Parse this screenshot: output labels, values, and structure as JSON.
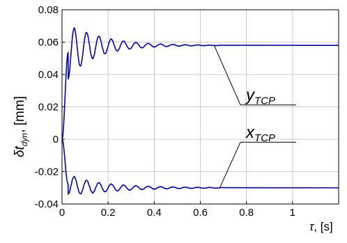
{
  "chart_data": {
    "type": "line",
    "title": "",
    "xlabel_symbol": "τ",
    "xlabel_unit": ", [s]",
    "ylabel_main": "δt",
    "ylabel_sub": "dyn",
    "ylabel_unit": ", [mm]",
    "xlim": [
      0,
      1.2
    ],
    "ylim": [
      -0.04,
      0.08
    ],
    "xticks": [
      0,
      0.2,
      0.4,
      0.6,
      0.8,
      1
    ],
    "xtick_labels": [
      "0",
      "0.2",
      "0.4",
      "0.6",
      "0.8",
      "1"
    ],
    "yticks": [
      -0.04,
      -0.02,
      0,
      0.02,
      0.04,
      0.06,
      0.08
    ],
    "ytick_labels": [
      "-0.04",
      "-0.02",
      "0",
      "0.02",
      "0.04",
      "0.06",
      "0.08"
    ],
    "grid": true,
    "line_color": "#0000cc",
    "series": [
      {
        "name": "y_TCP",
        "label_main": "y",
        "label_sub": "TCP",
        "steady_value": 0.058,
        "dynamics": {
          "onset": 0.0265,
          "amplitude": 0.0165,
          "decay": 7.5,
          "frequency": 18.7,
          "phase": 3.14159
        },
        "ripple": {
          "amplitude": 0.00018,
          "frequency": 120
        },
        "x_end": 1.2,
        "annotation_target": {
          "x": 0.66,
          "y": 0.058
        },
        "annotation_label_pos": {
          "x": 0.78,
          "y": 0.0255
        }
      },
      {
        "name": "x_TCP",
        "label_main": "x",
        "label_sub": "TCP",
        "steady_value": -0.03,
        "dynamics": {
          "onset": 0.0265,
          "amplitude": 0.0062,
          "decay": 5.5,
          "frequency": 18.7,
          "phase": 3.14159
        },
        "ripple": {
          "amplitude": 0.0002,
          "frequency": 120
        },
        "x_end": 1.2,
        "annotation_target": {
          "x": 0.685,
          "y": -0.0298
        },
        "annotation_label_pos": {
          "x": 0.78,
          "y": 0.0025
        }
      }
    ]
  }
}
